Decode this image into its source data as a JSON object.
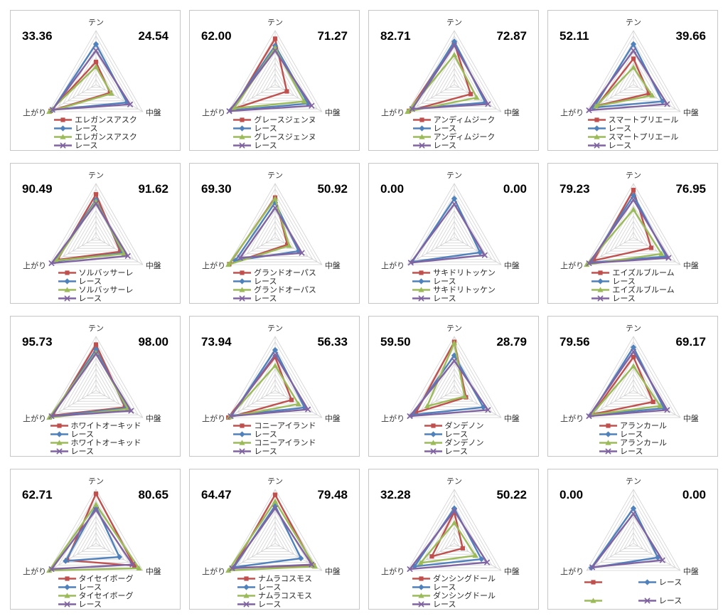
{
  "page": {
    "background": "#ffffff",
    "panel_border": "#c6c6c6",
    "grid_color": "#d2d2d2",
    "label_color": "#333333",
    "number_color": "#000000"
  },
  "chart_data": {
    "type": "radar",
    "layout": "4x4-grid",
    "axes": [
      "テン",
      "中盤",
      "上がり"
    ],
    "scale": {
      "min": 0,
      "max": 100,
      "rings": 10
    },
    "legend_position": "bottom",
    "charts": [
      {
        "left_value": "33.36",
        "right_value": "24.54",
        "legend_columns": 1,
        "series": [
          {
            "name": "エレガンスアスク",
            "color": "#C0504D",
            "marker": "square",
            "values": [
              42,
              30,
              97
            ]
          },
          {
            "name": "レース",
            "color": "#4F81BD",
            "marker": "diamond",
            "values": [
              75,
              66,
              93
            ]
          },
          {
            "name": "エレガンスアスク",
            "color": "#9BBB59",
            "marker": "triangle",
            "values": [
              33,
              33,
              100
            ]
          },
          {
            "name": "レース",
            "color": "#8064A2",
            "marker": "x",
            "values": [
              63,
              73,
              93
            ]
          }
        ]
      },
      {
        "left_value": "62.00",
        "right_value": "71.27",
        "legend_columns": 1,
        "series": [
          {
            "name": "グレースジェンヌ",
            "color": "#C0504D",
            "marker": "square",
            "values": [
              85,
              25,
              90
            ]
          },
          {
            "name": "レース",
            "color": "#4F81BD",
            "marker": "diamond",
            "values": [
              72,
              70,
              95
            ]
          },
          {
            "name": "グレースジェンヌ",
            "color": "#9BBB59",
            "marker": "triangle",
            "values": [
              68,
              62,
              88
            ]
          },
          {
            "name": "レース",
            "color": "#8064A2",
            "marker": "x",
            "values": [
              63,
              78,
              98
            ]
          }
        ]
      },
      {
        "left_value": "82.71",
        "right_value": "72.87",
        "legend_columns": 1,
        "series": [
          {
            "name": "アンディムジーク",
            "color": "#C0504D",
            "marker": "square",
            "values": [
              77,
              35,
              97
            ]
          },
          {
            "name": "レース",
            "color": "#4F81BD",
            "marker": "diamond",
            "values": [
              80,
              66,
              90
            ]
          },
          {
            "name": "アンディムジーク",
            "color": "#9BBB59",
            "marker": "triangle",
            "values": [
              55,
              48,
              100
            ]
          },
          {
            "name": "レース",
            "color": "#8064A2",
            "marker": "x",
            "values": [
              73,
              72,
              90
            ]
          }
        ]
      },
      {
        "left_value": "52.11",
        "right_value": "39.66",
        "legend_columns": 1,
        "series": [
          {
            "name": "スマートプリエール",
            "color": "#C0504D",
            "marker": "square",
            "values": [
              48,
              33,
              78
            ]
          },
          {
            "name": "レース",
            "color": "#4F81BD",
            "marker": "diamond",
            "values": [
              75,
              62,
              85
            ]
          },
          {
            "name": "スマートプリエール",
            "color": "#9BBB59",
            "marker": "triangle",
            "values": [
              32,
              40,
              80
            ]
          },
          {
            "name": "レース",
            "color": "#8064A2",
            "marker": "x",
            "values": [
              63,
              72,
              95
            ]
          }
        ]
      },
      {
        "left_value": "90.49",
        "right_value": "91.62",
        "legend_columns": 1,
        "series": [
          {
            "name": "ソルバッサーレ",
            "color": "#C0504D",
            "marker": "square",
            "values": [
              80,
              52,
              82
            ]
          },
          {
            "name": "レース",
            "color": "#4F81BD",
            "marker": "diamond",
            "values": [
              70,
              57,
              88
            ]
          },
          {
            "name": "ソルバッサーレ",
            "color": "#9BBB59",
            "marker": "triangle",
            "values": [
              67,
              60,
              85
            ]
          },
          {
            "name": "レース",
            "color": "#8064A2",
            "marker": "x",
            "values": [
              63,
              68,
              95
            ]
          }
        ]
      },
      {
        "left_value": "69.30",
        "right_value": "50.92",
        "legend_columns": 1,
        "series": [
          {
            "name": "グランドオーパス",
            "color": "#C0504D",
            "marker": "square",
            "values": [
              74,
              26,
              98
            ]
          },
          {
            "name": "レース",
            "color": "#4F81BD",
            "marker": "diamond",
            "values": [
              65,
              50,
              85
            ]
          },
          {
            "name": "グランドオーパス",
            "color": "#9BBB59",
            "marker": "triangle",
            "values": [
              72,
              30,
              100
            ]
          },
          {
            "name": "レース",
            "color": "#8064A2",
            "marker": "x",
            "values": [
              55,
              57,
              75
            ]
          }
        ]
      },
      {
        "left_value": "0.00",
        "right_value": "0.00",
        "legend_columns": 1,
        "series": [
          {
            "name": "サキドリトッケン",
            "color": "#C0504D",
            "marker": "square",
            "values": null
          },
          {
            "name": "レース",
            "color": "#4F81BD",
            "marker": "diamond",
            "values": [
              72,
              55,
              90
            ]
          },
          {
            "name": "サキドリトッケン",
            "color": "#9BBB59",
            "marker": "triangle",
            "values": null
          },
          {
            "name": "レース",
            "color": "#8064A2",
            "marker": "x",
            "values": [
              62,
              65,
              93
            ]
          }
        ]
      },
      {
        "left_value": "79.23",
        "right_value": "76.95",
        "legend_columns": 1,
        "series": [
          {
            "name": "エイズルブルーム",
            "color": "#C0504D",
            "marker": "square",
            "values": [
              88,
              38,
              85
            ]
          },
          {
            "name": "レース",
            "color": "#4F81BD",
            "marker": "diamond",
            "values": [
              78,
              70,
              92
            ]
          },
          {
            "name": "エイズルブルーム",
            "color": "#9BBB59",
            "marker": "triangle",
            "values": [
              52,
              60,
              100
            ]
          },
          {
            "name": "レース",
            "color": "#8064A2",
            "marker": "x",
            "values": [
              70,
              75,
              95
            ]
          }
        ]
      },
      {
        "left_value": "95.73",
        "right_value": "98.00",
        "legend_columns": 1,
        "series": [
          {
            "name": "ホワイトオーキッド",
            "color": "#C0504D",
            "marker": "square",
            "values": [
              85,
              62,
              92
            ]
          },
          {
            "name": "レース",
            "color": "#4F81BD",
            "marker": "diamond",
            "values": [
              76,
              65,
              95
            ]
          },
          {
            "name": "ホワイトオーキッド",
            "color": "#9BBB59",
            "marker": "triangle",
            "values": [
              70,
              68,
              100
            ]
          },
          {
            "name": "レース",
            "color": "#8064A2",
            "marker": "x",
            "values": [
              68,
              75,
              95
            ]
          }
        ]
      },
      {
        "left_value": "73.94",
        "right_value": "56.33",
        "legend_columns": 1,
        "series": [
          {
            "name": "コニーアイランド",
            "color": "#C0504D",
            "marker": "square",
            "values": [
              62,
              35,
              100
            ]
          },
          {
            "name": "レース",
            "color": "#4F81BD",
            "marker": "diamond",
            "values": [
              75,
              63,
              93
            ]
          },
          {
            "name": "コニーアイランド",
            "color": "#9BBB59",
            "marker": "triangle",
            "values": [
              46,
              50,
              98
            ]
          },
          {
            "name": "レース",
            "color": "#8064A2",
            "marker": "x",
            "values": [
              66,
              70,
              95
            ]
          }
        ]
      },
      {
        "left_value": "59.50",
        "right_value": "28.79",
        "legend_columns": 1,
        "series": [
          {
            "name": "ダンデノン",
            "color": "#C0504D",
            "marker": "square",
            "values": [
              90,
              25,
              82
            ]
          },
          {
            "name": "レース",
            "color": "#4F81BD",
            "marker": "diamond",
            "values": [
              65,
              62,
              90
            ]
          },
          {
            "name": "ダンデノン",
            "color": "#9BBB59",
            "marker": "triangle",
            "values": [
              88,
              22,
              58
            ]
          },
          {
            "name": "レース",
            "color": "#8064A2",
            "marker": "x",
            "values": [
              55,
              72,
              95
            ]
          }
        ]
      },
      {
        "left_value": "79.56",
        "right_value": "69.17",
        "legend_columns": 1,
        "series": [
          {
            "name": "アランカール",
            "color": "#C0504D",
            "marker": "square",
            "values": [
              62,
              42,
              88
            ]
          },
          {
            "name": "レース",
            "color": "#4F81BD",
            "marker": "diamond",
            "values": [
              80,
              65,
              92
            ]
          },
          {
            "name": "アランカール",
            "color": "#9BBB59",
            "marker": "triangle",
            "values": [
              45,
              57,
              90
            ]
          },
          {
            "name": "レース",
            "color": "#8064A2",
            "marker": "x",
            "values": [
              72,
              72,
              95
            ]
          }
        ]
      },
      {
        "left_value": "62.71",
        "right_value": "80.65",
        "legend_columns": 1,
        "series": [
          {
            "name": "タイセイボーグ",
            "color": "#C0504D",
            "marker": "square",
            "values": [
              92,
              82,
              62
            ]
          },
          {
            "name": "レース",
            "color": "#4F81BD",
            "marker": "diamond",
            "values": [
              68,
              50,
              65
            ]
          },
          {
            "name": "タイセイボーグ",
            "color": "#9BBB59",
            "marker": "triangle",
            "values": [
              72,
              92,
              100
            ]
          },
          {
            "name": "レース",
            "color": "#8064A2",
            "marker": "x",
            "values": [
              62,
              78,
              95
            ]
          }
        ]
      },
      {
        "left_value": "64.47",
        "right_value": "79.48",
        "legend_columns": 1,
        "series": [
          {
            "name": "ナムラコスモス",
            "color": "#C0504D",
            "marker": "square",
            "values": [
              90,
              82,
              90
            ]
          },
          {
            "name": "レース",
            "color": "#4F81BD",
            "marker": "diamond",
            "values": [
              70,
              55,
              88
            ]
          },
          {
            "name": "ナムラコスモス",
            "color": "#9BBB59",
            "marker": "triangle",
            "values": [
              78,
              85,
              100
            ]
          },
          {
            "name": "レース",
            "color": "#8064A2",
            "marker": "x",
            "values": [
              65,
              78,
              92
            ]
          }
        ]
      },
      {
        "left_value": "32.28",
        "right_value": "50.22",
        "legend_columns": 1,
        "series": [
          {
            "name": "ダンシングドール",
            "color": "#C0504D",
            "marker": "square",
            "values": [
              58,
              18,
              48
            ]
          },
          {
            "name": "レース",
            "color": "#4F81BD",
            "marker": "diamond",
            "values": [
              65,
              58,
              85
            ]
          },
          {
            "name": "ダンシングドール",
            "color": "#9BBB59",
            "marker": "triangle",
            "values": [
              38,
              45,
              72
            ]
          },
          {
            "name": "レース",
            "color": "#8064A2",
            "marker": "x",
            "values": [
              60,
              70,
              95
            ]
          }
        ]
      },
      {
        "left_value": "0.00",
        "right_value": "0.00",
        "legend_columns": 2,
        "series": [
          {
            "name": "",
            "color": "#C0504D",
            "marker": "square",
            "values": null
          },
          {
            "name": "レース",
            "color": "#4F81BD",
            "marker": "diamond",
            "values": [
              65,
              52,
              90
            ]
          },
          {
            "name": "",
            "color": "#9BBB59",
            "marker": "triangle",
            "values": null
          },
          {
            "name": "レース",
            "color": "#8064A2",
            "marker": "x",
            "values": [
              55,
              62,
              88
            ]
          }
        ]
      }
    ]
  }
}
